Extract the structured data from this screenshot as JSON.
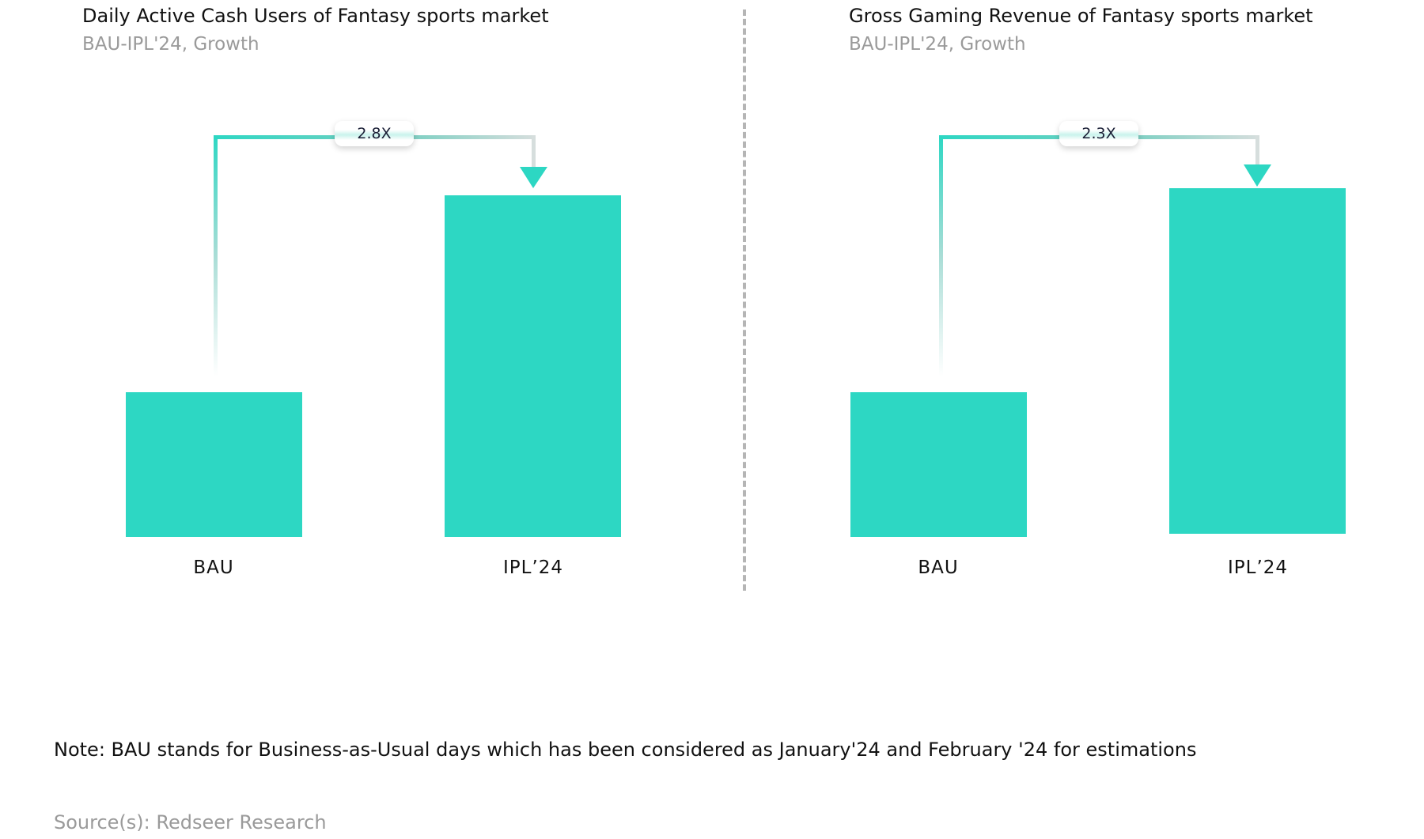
{
  "chart_data": [
    {
      "type": "bar",
      "title": "Daily Active Cash Users of Fantasy sports market",
      "subtitle": "BAU-IPL'24, Growth",
      "categories": [
        "BAU",
        "IPL’24"
      ],
      "values": [
        1,
        2.8
      ],
      "growth_label": "2.8X",
      "xlabel": "",
      "ylabel": "",
      "grid": false
    },
    {
      "type": "bar",
      "title": "Gross Gaming Revenue of Fantasy sports market",
      "subtitle": "BAU-IPL'24, Growth",
      "categories": [
        "BAU",
        "IPL’24"
      ],
      "values": [
        1,
        2.3
      ],
      "growth_label": "2.3X",
      "xlabel": "",
      "ylabel": "",
      "grid": false
    }
  ],
  "note": "Note: BAU stands for Business-as-Usual days which has been considered as January'24 and February '24 for estimations",
  "source": "Source(s): Redseer Research",
  "colors": {
    "bar": "#2dd7c3",
    "divider": "#b5b5b5"
  }
}
